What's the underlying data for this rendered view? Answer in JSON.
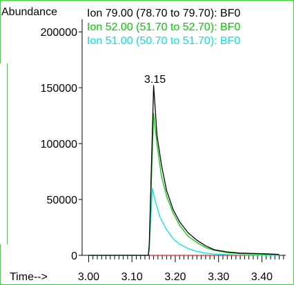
{
  "chart_data": {
    "type": "line",
    "ylabel": "Abundance",
    "xlabel": "Time-->",
    "xlim": [
      2.985,
      3.455
    ],
    "ylim": [
      0,
      210000
    ],
    "x_ticks": [
      "3.00",
      "3.10",
      "3.20",
      "3.30",
      "3.40"
    ],
    "x_tick_values": [
      3.0,
      3.1,
      3.2,
      3.3,
      3.4
    ],
    "y_ticks": [
      "0",
      "50000",
      "100000",
      "150000",
      "200000"
    ],
    "y_tick_values": [
      0,
      50000,
      100000,
      150000,
      200000
    ],
    "peak_label": {
      "text": "3.15",
      "x": 3.15
    },
    "legend": [
      {
        "text": "Ion  79.00 (78.70 to 79.70): BF0",
        "color": "#000000"
      },
      {
        "text": "Ion  52.00 (51.70 to 52.70): BF0",
        "color": "#00cc00"
      },
      {
        "text": "Ion  51.00 (50.70 to 51.70): BF0",
        "color": "#00e5e5"
      }
    ],
    "series": [
      {
        "color": "#000000",
        "x": [
          3.0,
          3.138,
          3.14,
          3.15,
          3.158,
          3.168,
          3.18,
          3.195,
          3.21,
          3.23,
          3.25,
          3.27,
          3.29,
          3.32,
          3.35,
          3.4,
          3.44
        ],
        "y": [
          0,
          0,
          10000,
          152000,
          107000,
          81000,
          58000,
          41000,
          30000,
          20000,
          13500,
          8500,
          5000,
          3000,
          2000,
          1500,
          800
        ]
      },
      {
        "color": "#00cc00",
        "x": [
          3.0,
          3.138,
          3.14,
          3.15,
          3.158,
          3.168,
          3.18,
          3.195,
          3.21,
          3.23,
          3.25,
          3.27,
          3.29,
          3.32,
          3.35,
          3.4,
          3.44
        ],
        "y": [
          0,
          0,
          8000,
          127000,
          99000,
          71000,
          53000,
          38000,
          27000,
          17000,
          11500,
          7000,
          4500,
          2500,
          1500,
          1000,
          600
        ]
      },
      {
        "color": "#00e5e5",
        "x": [
          3.0,
          3.138,
          3.14,
          3.147,
          3.155,
          3.165,
          3.18,
          3.195,
          3.21,
          3.23,
          3.25,
          3.27,
          3.29,
          3.32,
          3.35,
          3.4,
          3.44
        ],
        "y": [
          0,
          0,
          5000,
          60000,
          47000,
          34000,
          23000,
          15000,
          10000,
          6000,
          3500,
          2000,
          1200,
          600,
          300,
          100,
          0
        ]
      },
      {
        "color": "#e02020",
        "x": [
          3.14,
          3.385
        ],
        "y": [
          0,
          0
        ]
      }
    ]
  }
}
